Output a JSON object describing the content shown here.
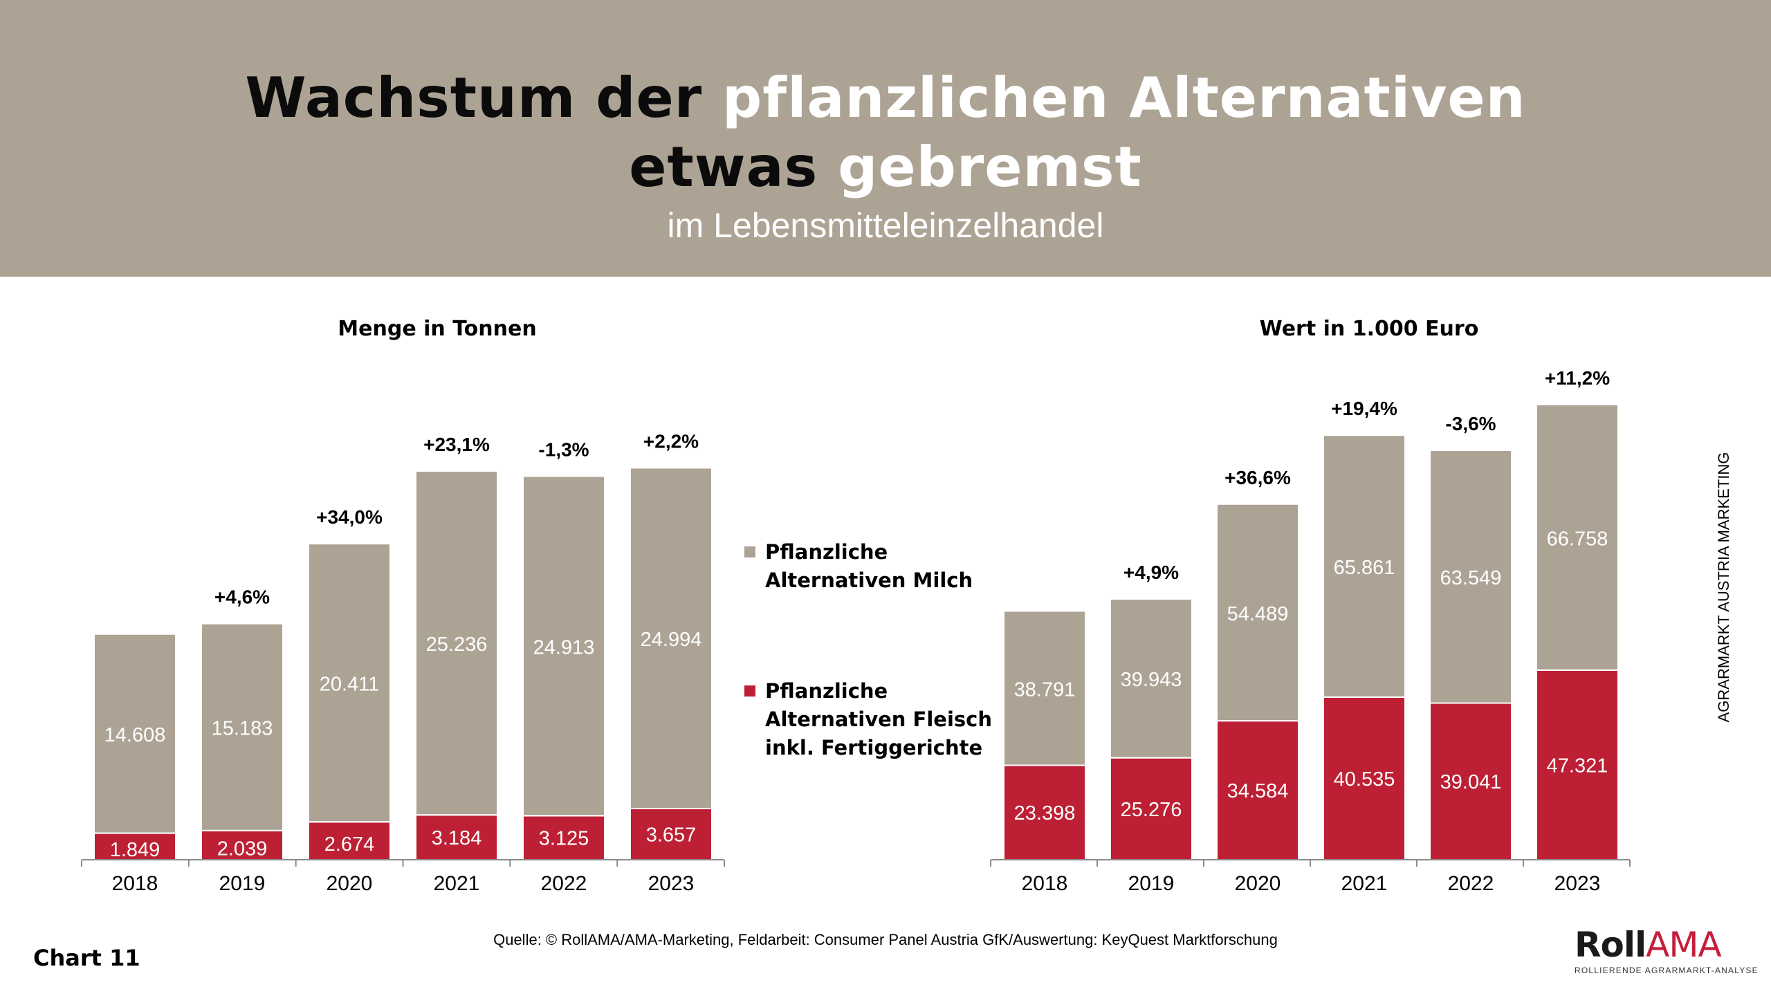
{
  "header": {
    "title_line1_dark": "Wachstum der ",
    "title_line1_light": "pflanzlichen Alternativen",
    "title_line2_dark": "etwas ",
    "title_line2_light": "gebremst",
    "subtitle": "im Lebensmitteleinzelhandel"
  },
  "colors": {
    "header_bg": "#ada395",
    "milch": "#ada395",
    "fleisch": "#bd2034"
  },
  "legend": {
    "items": [
      {
        "label": "Pflanzliche\nAlternativen Milch",
        "color": "#ada395"
      },
      {
        "label": "Pflanzliche\nAlternativen Fleisch\ninkl. Fertiggerichte",
        "color": "#bd2034"
      }
    ]
  },
  "side_text": "AGRARMARKT AUSTRIA MARKETING",
  "footer": {
    "chart_label": "Chart 11",
    "source": "Quelle: © RollAMA/AMA-Marketing, Feldarbeit: Consumer Panel Austria GfK/Auswertung: KeyQuest Marktforschung",
    "logo_roll": "Roll",
    "logo_ama": "AMA",
    "logo_sub": "ROLLIERENDE AGRARMARKT-ANALYSE"
  },
  "chart_data": [
    {
      "type": "bar",
      "stacked": true,
      "title": "Menge in Tonnen",
      "xlabel": "",
      "ylabel": "",
      "categories": [
        "2018",
        "2019",
        "2020",
        "2021",
        "2022",
        "2023"
      ],
      "series": [
        {
          "name": "Pflanzliche Alternativen Fleisch inkl. Fertiggerichte",
          "values": [
            1849,
            2039,
            2674,
            3184,
            3125,
            3657
          ],
          "labels": [
            "1.849",
            "2.039",
            "2.674",
            "3.184",
            "3.125",
            "3.657"
          ]
        },
        {
          "name": "Pflanzliche Alternativen Milch",
          "values": [
            14608,
            15183,
            20411,
            25236,
            24913,
            24994
          ],
          "labels": [
            "14.608",
            "15.183",
            "20.411",
            "25.236",
            "24.913",
            "24.994"
          ]
        }
      ],
      "growth_labels": [
        "",
        "+4,6%",
        "+34,0%",
        "+23,1%",
        "-1,3%",
        "+2,2%"
      ],
      "grid": false,
      "legend": "center-right"
    },
    {
      "type": "bar",
      "stacked": true,
      "title": "Wert in 1.000 Euro",
      "xlabel": "",
      "ylabel": "",
      "categories": [
        "2018",
        "2019",
        "2020",
        "2021",
        "2022",
        "2023"
      ],
      "series": [
        {
          "name": "Pflanzliche Alternativen Fleisch inkl. Fertiggerichte",
          "values": [
            23398,
            25276,
            34584,
            40535,
            39041,
            47321
          ],
          "labels": [
            "23.398",
            "25.276",
            "34.584",
            "40.535",
            "39.041",
            "47.321"
          ]
        },
        {
          "name": "Pflanzliche Alternativen Milch",
          "values": [
            38791,
            39943,
            54489,
            65861,
            63549,
            66758
          ],
          "labels": [
            "38.791",
            "39.943",
            "54.489",
            "65.861",
            "63.549",
            "66.758"
          ]
        }
      ],
      "growth_labels": [
        "",
        "+4,9%",
        "+36,6%",
        "+19,4%",
        "-3,6%",
        "+11,2%"
      ],
      "grid": false,
      "legend": "center-left"
    }
  ]
}
